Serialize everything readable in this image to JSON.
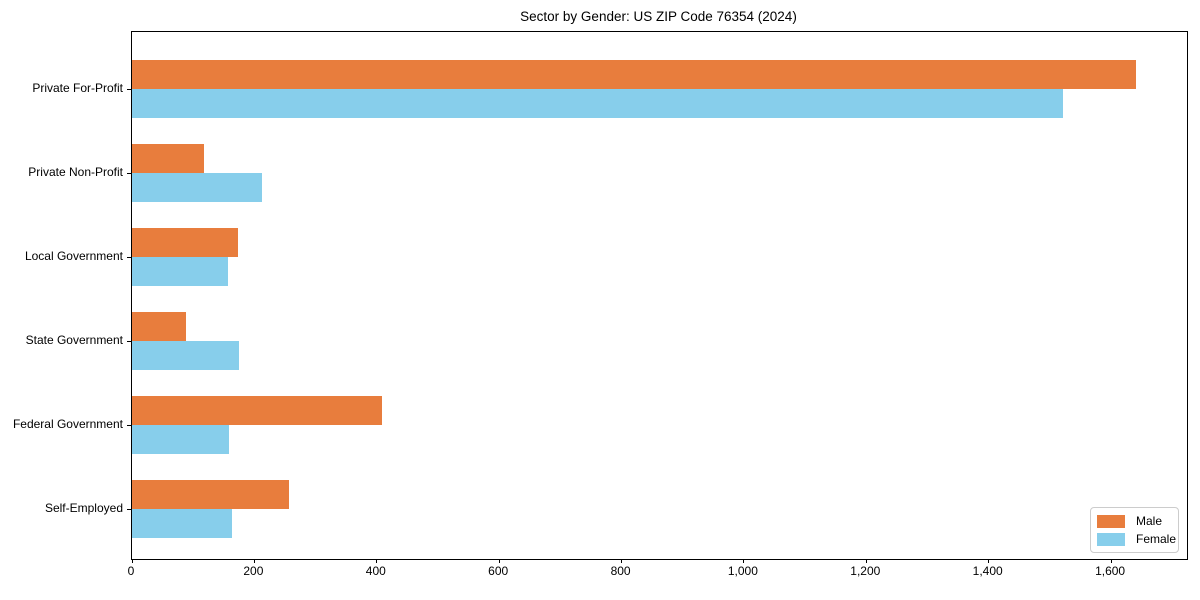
{
  "chart_data": {
    "type": "bar",
    "orientation": "horizontal",
    "title": "Sector by Gender: US ZIP Code 76354 (2024)",
    "categories": [
      "Private For-Profit",
      "Private Non-Profit",
      "Local Government",
      "State Government",
      "Federal Government",
      "Self-Employed"
    ],
    "series": [
      {
        "name": "Male",
        "color": "#E87D3D",
        "values": [
          1640,
          118,
          173,
          88,
          408,
          257
        ]
      },
      {
        "name": "Female",
        "color": "#87CEEB",
        "values": [
          1522,
          213,
          157,
          175,
          159,
          163
        ]
      }
    ],
    "xlim": [
      0,
      1724
    ],
    "x_ticks": [
      0,
      200,
      400,
      600,
      800,
      1000,
      1200,
      1400,
      1600
    ],
    "x_tick_labels": [
      "0",
      "200",
      "400",
      "600",
      "800",
      "1,000",
      "1,200",
      "1,400",
      "1,600"
    ],
    "xlabel": "",
    "ylabel": "",
    "grid": false,
    "legend_position": "lower right",
    "frame_color": "#000000",
    "background_color": "#ffffff"
  }
}
